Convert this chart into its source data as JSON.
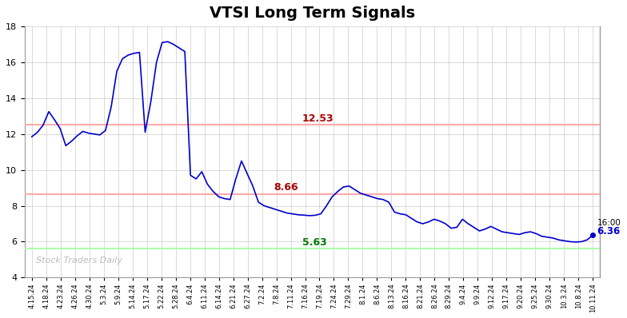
{
  "title": "VTSI Long Term Signals",
  "title_fontsize": 14,
  "line_color": "#0000cc",
  "line_width": 1.2,
  "background_color": "#ffffff",
  "grid_color": "#cccccc",
  "hline_upper": 12.53,
  "hline_middle": 8.66,
  "hline_lower": 5.63,
  "hline_upper_color": "#ffaaaa",
  "hline_middle_color": "#ffaaaa",
  "hline_lower_color": "#aaffaa",
  "label_upper_color": "#aa0000",
  "label_middle_color": "#aa0000",
  "label_lower_color": "#007700",
  "label_upper": "12.53",
  "label_middle": "8.66",
  "label_lower": "5.63",
  "end_label": "16:00",
  "end_value_label": "6.36",
  "end_label_color": "#000000",
  "end_value_color": "#0000cc",
  "watermark": "Stock Traders Daily",
  "watermark_color": "#bbbbbb",
  "ylim": [
    4,
    18
  ],
  "yticks": [
    4,
    6,
    8,
    10,
    12,
    14,
    16,
    18
  ],
  "xtick_labels": [
    "4.15.24",
    "4.18.24",
    "4.23.24",
    "4.26.24",
    "4.30.24",
    "5.3.24",
    "5.9.24",
    "5.14.24",
    "5.17.24",
    "5.22.24",
    "5.28.24",
    "6.4.24",
    "6.11.24",
    "6.14.24",
    "6.21.24",
    "6.27.24",
    "7.2.24",
    "7.8.24",
    "7.11.24",
    "7.16.24",
    "7.19.24",
    "7.24.24",
    "7.29.24",
    "8.1.24",
    "8.6.24",
    "8.13.24",
    "8.16.24",
    "8.21.24",
    "8.26.24",
    "8.29.24",
    "9.4.24",
    "9.9.24",
    "9.12.24",
    "9.17.24",
    "9.20.24",
    "9.25.24",
    "9.30.24",
    "10.3.24",
    "10.8.24",
    "10.11.24"
  ],
  "y_dense": [
    11.85,
    12.1,
    12.5,
    13.25,
    12.8,
    12.3,
    11.35,
    11.6,
    11.9,
    12.15,
    12.05,
    12.0,
    11.95,
    12.2,
    13.5,
    15.5,
    16.2,
    16.4,
    16.5,
    16.55,
    12.1,
    13.8,
    16.0,
    17.1,
    17.15,
    17.0,
    16.8,
    16.6,
    9.7,
    9.5,
    9.9,
    9.2,
    8.8,
    8.5,
    8.4,
    8.35,
    9.5,
    10.5,
    9.8,
    9.1,
    8.2,
    8.0,
    7.9,
    7.8,
    7.7,
    7.6,
    7.55,
    7.5,
    7.48,
    7.45,
    7.47,
    7.55,
    8.0,
    8.5,
    8.8,
    9.05,
    9.1,
    8.9,
    8.7,
    8.6,
    8.5,
    8.4,
    8.35,
    8.2,
    7.65,
    7.55,
    7.5,
    7.3,
    7.1,
    7.0,
    7.1,
    7.25,
    7.15,
    7.0,
    6.75,
    6.8,
    7.25,
    7.0,
    6.8,
    6.6,
    6.7,
    6.85,
    6.7,
    6.55,
    6.5,
    6.45,
    6.4,
    6.5,
    6.55,
    6.45,
    6.3,
    6.25,
    6.2,
    6.1,
    6.05,
    6.0,
    5.98,
    6.0,
    6.1,
    6.36
  ]
}
